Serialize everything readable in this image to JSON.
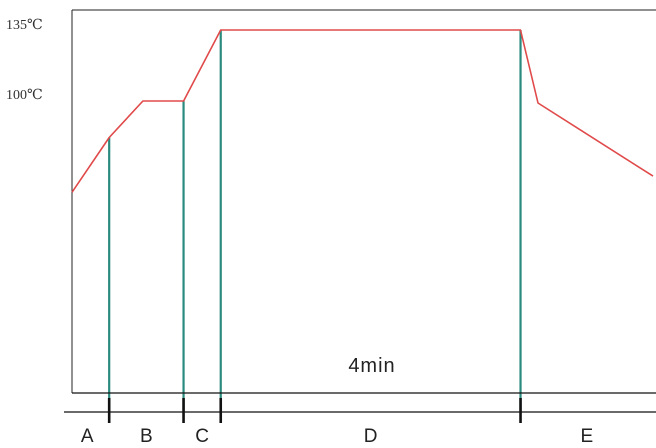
{
  "chart_data": {
    "type": "line",
    "title": "",
    "xlabel": "",
    "ylabel": "",
    "y_tick_labels": [
      "135℃",
      "100℃"
    ],
    "duration_label": "4min",
    "phases": [
      "A",
      "B",
      "C",
      "D",
      "E"
    ],
    "series": [
      {
        "values": [
          {
            "x": 0.0,
            "y": 55
          },
          {
            "x": 0.64,
            "y": 82
          },
          {
            "x": 1.22,
            "y": 100
          },
          {
            "x": 1.92,
            "y": 100
          },
          {
            "x": 2.56,
            "y": 135
          },
          {
            "x": 7.72,
            "y": 135
          },
          {
            "x": 8.02,
            "y": 99
          },
          {
            "x": 10.0,
            "y": 63
          }
        ]
      }
    ],
    "phase_boundaries": [
      0.64,
      1.92,
      2.56,
      7.72
    ],
    "xlim": [
      0,
      10
    ],
    "ylim": [
      0,
      135
    ],
    "grid": false,
    "legend": "none",
    "colors": {
      "curve": "#e04a4a",
      "marker_lines": "#2a8a7e",
      "axis": "#111111"
    }
  }
}
